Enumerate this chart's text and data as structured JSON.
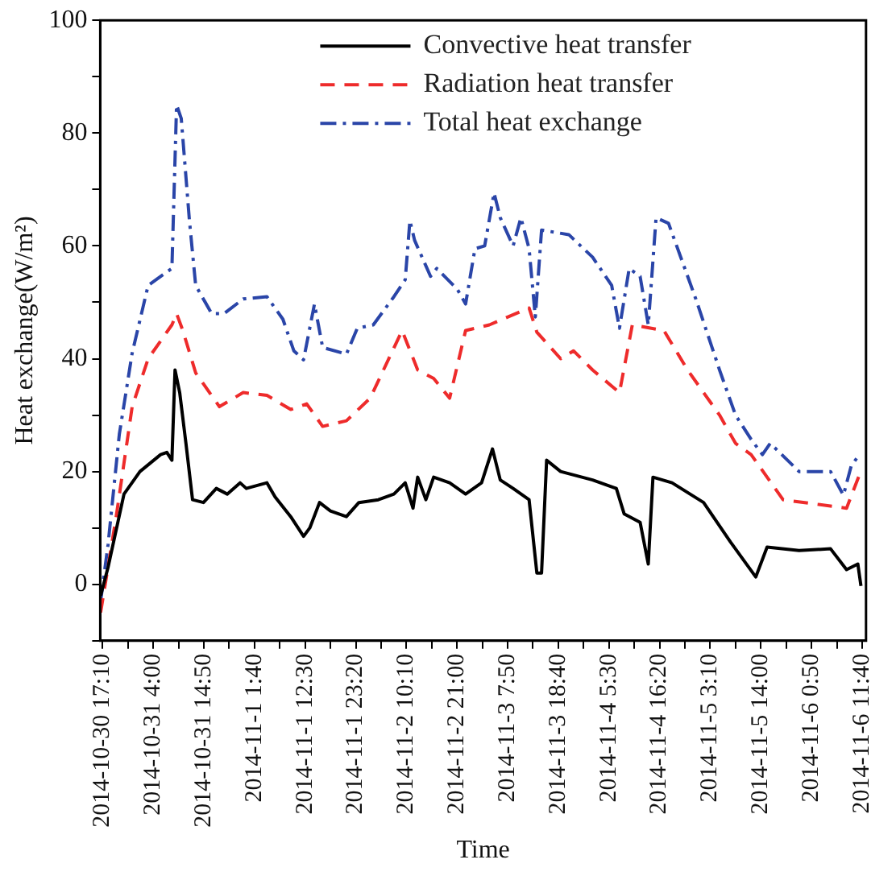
{
  "chart_data": {
    "type": "line",
    "xlabel": "Time",
    "ylabel": "Heat exchange(W/m²)",
    "ylim": [
      -10,
      100
    ],
    "yticks": [
      {
        "value": -10,
        "label": null
      },
      0,
      {
        "value": 10,
        "label": null
      },
      20,
      {
        "value": 30,
        "label": null
      },
      40,
      {
        "value": 50,
        "label": null
      },
      60,
      {
        "value": 70,
        "label": null
      },
      80,
      {
        "value": 90,
        "label": null
      },
      100
    ],
    "xlim": [
      "2014-10-30T16:40",
      "2014-11-06T12:30"
    ],
    "xticks": [
      {
        "value": "2014-10-30T17:10",
        "label": "2014-10-30 17:10"
      },
      {
        "value": "2014-10-30T22:35",
        "label": null
      },
      {
        "value": "2014-10-31T04:00",
        "label": "2014-10-31 4:00"
      },
      {
        "value": "2014-10-31T09:25",
        "label": null
      },
      {
        "value": "2014-10-31T14:50",
        "label": "2014-10-31 14:50"
      },
      {
        "value": "2014-10-31T20:15",
        "label": null
      },
      {
        "value": "2014-11-01T01:40",
        "label": "2014-11-1 1:40"
      },
      {
        "value": "2014-11-01T07:05",
        "label": null
      },
      {
        "value": "2014-11-01T12:30",
        "label": "2014-11-1 12:30"
      },
      {
        "value": "2014-11-01T17:55",
        "label": null
      },
      {
        "value": "2014-11-01T23:20",
        "label": "2014-11-1 23:20"
      },
      {
        "value": "2014-11-02T04:45",
        "label": null
      },
      {
        "value": "2014-11-02T10:10",
        "label": "2014-11-2 10:10"
      },
      {
        "value": "2014-11-02T15:35",
        "label": null
      },
      {
        "value": "2014-11-02T21:00",
        "label": "2014-11-2 21:00"
      },
      {
        "value": "2014-11-03T02:25",
        "label": null
      },
      {
        "value": "2014-11-03T07:50",
        "label": "2014-11-3 7:50"
      },
      {
        "value": "2014-11-03T13:15",
        "label": null
      },
      {
        "value": "2014-11-03T18:40",
        "label": "2014-11-3 18:40"
      },
      {
        "value": "2014-11-04T00:05",
        "label": null
      },
      {
        "value": "2014-11-04T05:30",
        "label": "2014-11-4 5:30"
      },
      {
        "value": "2014-11-04T10:55",
        "label": null
      },
      {
        "value": "2014-11-04T16:20",
        "label": "2014-11-4 16:20"
      },
      {
        "value": "2014-11-04T21:45",
        "label": null
      },
      {
        "value": "2014-11-05T03:10",
        "label": "2014-11-5 3:10"
      },
      {
        "value": "2014-11-05T08:35",
        "label": null
      },
      {
        "value": "2014-11-05T14:00",
        "label": "2014-11-5 14:00"
      },
      {
        "value": "2014-11-05T19:25",
        "label": null
      },
      {
        "value": "2014-11-06T00:50",
        "label": "2014-11-6 0:50"
      },
      {
        "value": "2014-11-06T06:15",
        "label": null
      },
      {
        "value": "2014-11-06T11:40",
        "label": "2014-11-6 11:40"
      }
    ],
    "grid": false,
    "legend": "top",
    "marker": "none",
    "series": [
      {
        "name": "Convective heat transfer",
        "color": "#000000",
        "line_style": "solid",
        "x": [
          "2014-10-30T16:45",
          "2014-10-30T18:20",
          "2014-10-30T21:45",
          "2014-10-31T01:10",
          "2014-10-31T05:35",
          "2014-10-31T06:55",
          "2014-10-31T08:00",
          "2014-10-31T08:40",
          "2014-10-31T09:40",
          "2014-10-31T11:00",
          "2014-10-31T12:25",
          "2014-10-31T14:45",
          "2014-10-31T17:30",
          "2014-10-31T19:50",
          "2014-10-31T22:35",
          "2014-10-31T23:55",
          "2014-11-01T04:20",
          "2014-11-01T06:05",
          "2014-11-01T09:25",
          "2014-11-01T12:10",
          "2014-11-01T13:30",
          "2014-11-01T15:35",
          "2014-11-01T17:55",
          "2014-11-01T21:20",
          "2014-11-02T00:00",
          "2014-11-02T04:10",
          "2014-11-02T07:30",
          "2014-11-02T09:55",
          "2014-11-02T11:35",
          "2014-11-02T12:35",
          "2014-11-02T14:20",
          "2014-11-02T16:00",
          "2014-11-02T19:25",
          "2014-11-02T22:50",
          "2014-11-03T02:15",
          "2014-11-03T04:35",
          "2014-11-03T06:15",
          "2014-11-03T09:00",
          "2014-11-03T12:25",
          "2014-11-03T14:05",
          "2014-11-03T15:05",
          "2014-11-03T16:10",
          "2014-11-03T19:10",
          "2014-11-04T02:00",
          "2014-11-04T07:05",
          "2014-11-04T08:45",
          "2014-11-04T12:10",
          "2014-11-04T13:55",
          "2014-11-04T14:55",
          "2014-11-04T19:00",
          "2014-11-05T01:45",
          "2014-11-05T07:30",
          "2014-11-05T12:55",
          "2014-11-05T15:20",
          "2014-11-05T22:10",
          "2014-11-06T04:55",
          "2014-11-06T08:20",
          "2014-11-06T10:45",
          "2014-11-06T11:25"
        ],
        "values": [
          -2,
          3,
          16,
          20,
          23,
          23.4,
          22,
          38,
          34,
          25,
          15,
          14.5,
          17,
          16,
          18,
          17,
          18,
          15.5,
          12,
          8.5,
          10,
          14.5,
          13,
          12,
          14.5,
          15,
          16,
          18,
          13.5,
          19,
          15,
          19,
          18,
          16,
          18,
          24,
          18.5,
          17,
          15,
          2,
          2,
          22,
          20,
          18.5,
          17,
          12.5,
          11,
          3.6,
          19,
          18,
          14.5,
          7.5,
          1.3,
          6.6,
          6,
          6.3,
          2.6,
          3.6,
          -0.3
        ]
      },
      {
        "name": "Radiation heat transfer",
        "color": "#ee2b2b",
        "line_style": "dashed",
        "x": [
          "2014-10-30T16:45",
          "2014-10-30T20:05",
          "2014-10-30T23:30",
          "2014-10-31T02:55",
          "2014-10-31T08:00",
          "2014-10-31T09:00",
          "2014-10-31T10:20",
          "2014-10-31T13:05",
          "2014-10-31T18:10",
          "2014-10-31T23:15",
          "2014-11-01T04:20",
          "2014-11-01T09:25",
          "2014-11-01T12:50",
          "2014-11-01T16:15",
          "2014-11-01T21:20",
          "2014-11-02T02:25",
          "2014-11-02T09:15",
          "2014-11-02T12:35",
          "2014-11-02T16:00",
          "2014-11-02T19:25",
          "2014-11-02T22:50",
          "2014-11-03T03:55",
          "2014-11-03T12:25",
          "2014-11-03T14:05",
          "2014-11-03T19:10",
          "2014-11-03T21:55",
          "2014-11-04T02:00",
          "2014-11-04T07:45",
          "2014-11-04T10:30",
          "2014-11-04T17:15",
          "2014-11-04T22:20",
          "2014-11-05T05:10",
          "2014-11-05T08:35",
          "2014-11-05T11:55",
          "2014-11-05T15:20",
          "2014-11-05T18:45",
          "2014-11-06T08:20",
          "2014-11-06T11:05",
          "2014-11-06T12:25"
        ],
        "values": [
          -5,
          12,
          31.5,
          40,
          46,
          48,
          45,
          37.5,
          31.5,
          34,
          33.5,
          31,
          32,
          28,
          29,
          33,
          45,
          38,
          36.5,
          33,
          45,
          46,
          49,
          44.7,
          40,
          41.4,
          38,
          34,
          46,
          45,
          38,
          30,
          25,
          23,
          19,
          15,
          13.5,
          19.4,
          20
        ]
      },
      {
        "name": "Total heat exchange",
        "color": "#2a45a8",
        "line_style": "dashdot",
        "x": [
          "2014-10-30T16:45",
          "2014-10-30T18:20",
          "2014-10-30T20:45",
          "2014-10-30T23:30",
          "2014-10-31T02:55",
          "2014-10-31T06:15",
          "2014-10-31T08:00",
          "2014-10-31T09:00",
          "2014-10-31T10:00",
          "2014-10-31T11:45",
          "2014-10-31T13:05",
          "2014-10-31T16:30",
          "2014-10-31T19:10",
          "2014-10-31T23:15",
          "2014-11-01T04:20",
          "2014-11-01T07:45",
          "2014-11-01T10:05",
          "2014-11-01T12:10",
          "2014-11-01T14:30",
          "2014-11-01T16:15",
          "2014-11-01T21:20",
          "2014-11-01T23:40",
          "2014-11-02T03:05",
          "2014-11-02T07:30",
          "2014-11-02T09:55",
          "2014-11-02T10:55",
          "2014-11-02T11:55",
          "2014-11-02T15:20",
          "2014-11-02T16:40",
          "2014-11-02T21:05",
          "2014-11-02T22:50",
          "2014-11-03T00:50",
          "2014-11-03T02:55",
          "2014-11-03T04:55",
          "2014-11-03T06:15",
          "2014-11-03T09:00",
          "2014-11-03T10:40",
          "2014-11-03T12:25",
          "2014-11-03T13:45",
          "2014-11-03T15:05",
          "2014-11-03T20:55",
          "2014-11-04T02:00",
          "2014-11-04T06:05",
          "2014-11-04T07:45",
          "2014-11-04T09:50",
          "2014-11-04T12:10",
          "2014-11-04T13:55",
          "2014-11-04T15:35",
          "2014-11-04T18:15",
          "2014-11-05T00:05",
          "2014-11-05T05:10",
          "2014-11-05T08:35",
          "2014-11-05T11:55",
          "2014-11-05T14:20",
          "2014-11-05T16:00",
          "2014-11-05T22:10",
          "2014-11-06T04:55",
          "2014-11-06T07:40",
          "2014-11-06T09:20",
          "2014-11-06T11:05"
        ],
        "values": [
          -3,
          7,
          26.6,
          41,
          53,
          55,
          56,
          85,
          82.6,
          64.5,
          53,
          48,
          48,
          50.6,
          51,
          47,
          41.4,
          39.8,
          49.7,
          42,
          40.8,
          45.4,
          46,
          51,
          54,
          64.5,
          61,
          54.6,
          56,
          52.3,
          49.7,
          59.5,
          60,
          69.4,
          65,
          60,
          65,
          59.5,
          47.4,
          62.8,
          62,
          58,
          53,
          45.4,
          56,
          54.6,
          46,
          65,
          64,
          50.6,
          38,
          30,
          25.7,
          23,
          25,
          20,
          20,
          15.8,
          21,
          23
        ]
      }
    ]
  }
}
